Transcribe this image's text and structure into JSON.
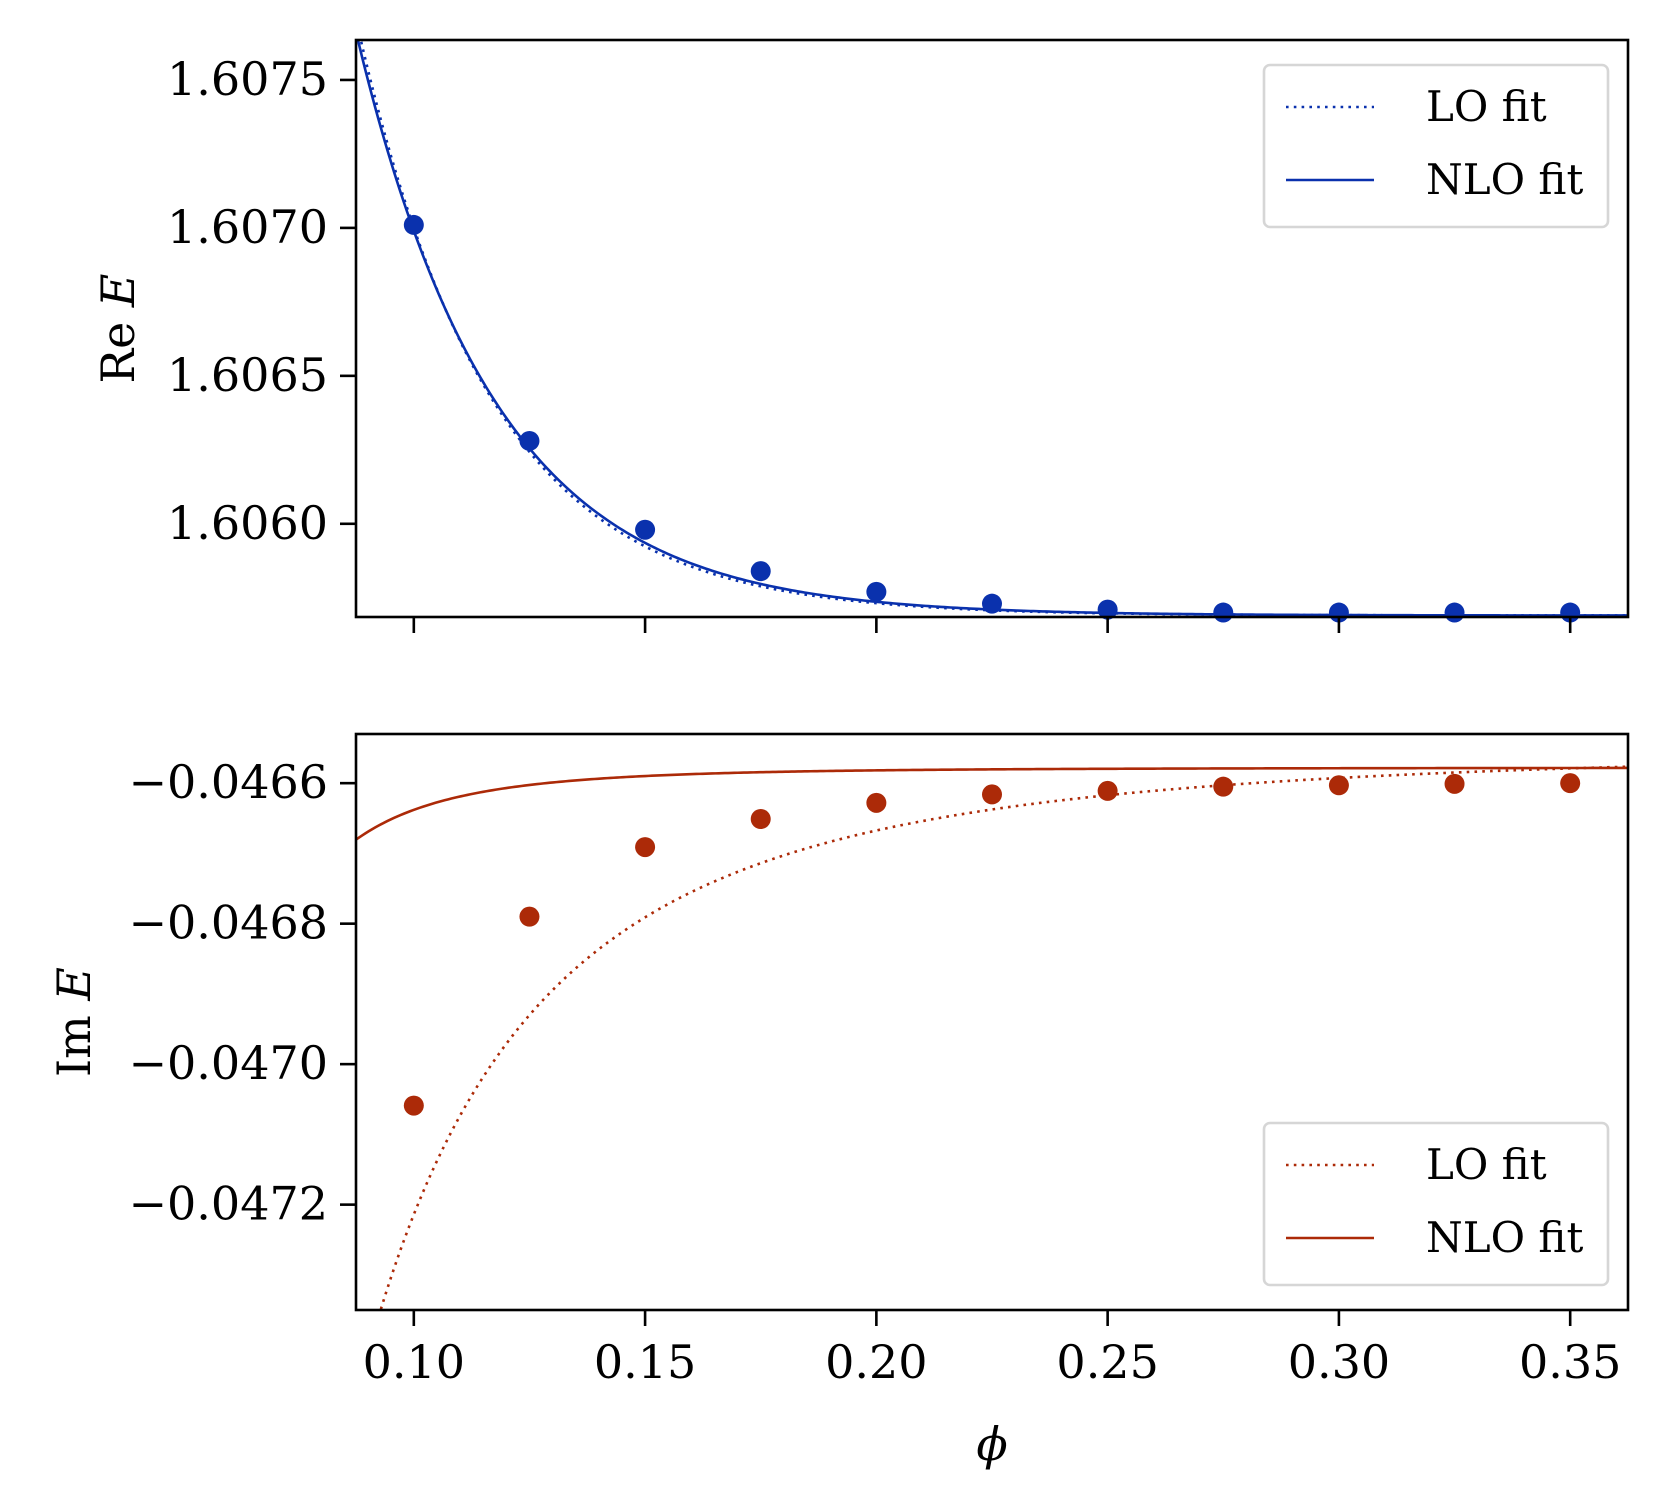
{
  "chart_data": [
    {
      "type": "line",
      "panel": "top",
      "ylabel": "Re E",
      "xlabel": "",
      "xlim": [
        0.0875,
        0.3625
      ],
      "ylim": [
        1.605685,
        1.607635
      ],
      "xticks": [
        0.1,
        0.15,
        0.2,
        0.25,
        0.3,
        0.35
      ],
      "show_xtick_labels": false,
      "yticks": [
        1.606,
        1.6065,
        1.607,
        1.6075
      ],
      "ytick_labels": [
        "1.6060",
        "1.6065",
        "1.6070",
        "1.6075"
      ],
      "color": "#0a31ad",
      "legend_position": "upper right",
      "points": {
        "x": [
          0.1,
          0.125,
          0.15,
          0.175,
          0.2,
          0.225,
          0.25,
          0.275,
          0.3,
          0.325,
          0.35
        ],
        "y": [
          1.60701,
          1.60628,
          1.60598,
          1.60584,
          1.60577,
          1.60573,
          1.60571,
          1.6057,
          1.6057,
          1.6057,
          1.6057
        ]
      },
      "series": [
        {
          "name": "LO fit",
          "style": "dotted",
          "model": "exp",
          "plateau": 1.60569,
          "amplitude": 0.00131,
          "decay": 0.029,
          "x0": 0.1
        },
        {
          "name": "NLO fit",
          "style": "solid",
          "model": "exp",
          "plateau": 1.60569,
          "amplitude": 0.0013,
          "decay": 0.03,
          "x0": 0.1
        }
      ]
    },
    {
      "type": "line",
      "panel": "bottom",
      "ylabel": "Im E",
      "xlabel": "ϕ",
      "xlim": [
        0.0875,
        0.3625
      ],
      "ylim": [
        -0.04735,
        -0.04653
      ],
      "xticks": [
        0.1,
        0.15,
        0.2,
        0.25,
        0.3,
        0.35
      ],
      "xtick_labels": [
        "0.10",
        "0.15",
        "0.20",
        "0.25",
        "0.30",
        "0.35"
      ],
      "show_xtick_labels": true,
      "yticks": [
        -0.0466,
        -0.0468,
        -0.047,
        -0.0472
      ],
      "ytick_labels": [
        "−0.0466",
        "−0.0468",
        "−0.0470",
        "−0.0472"
      ],
      "color": "#ac2a08",
      "legend_position": "lower right",
      "points": {
        "x": [
          0.1,
          0.125,
          0.15,
          0.175,
          0.2,
          0.225,
          0.25,
          0.275,
          0.3,
          0.325,
          0.35
        ],
        "y": [
          -0.047059,
          -0.04679,
          -0.046691,
          -0.046651,
          -0.046628,
          -0.046616,
          -0.046611,
          -0.046605,
          -0.046603,
          -0.046601,
          -0.0466
        ]
      },
      "series": [
        {
          "name": "LO fit",
          "style": "dotted",
          "model": "power",
          "plateau": -0.04655,
          "amplitude": -2.1e-06,
          "power": 2.5
        },
        {
          "name": "NLO fit",
          "style": "solid",
          "model": "power",
          "plateau": -0.046578,
          "amplitude": -6e-09,
          "power": 4.0
        }
      ]
    }
  ]
}
